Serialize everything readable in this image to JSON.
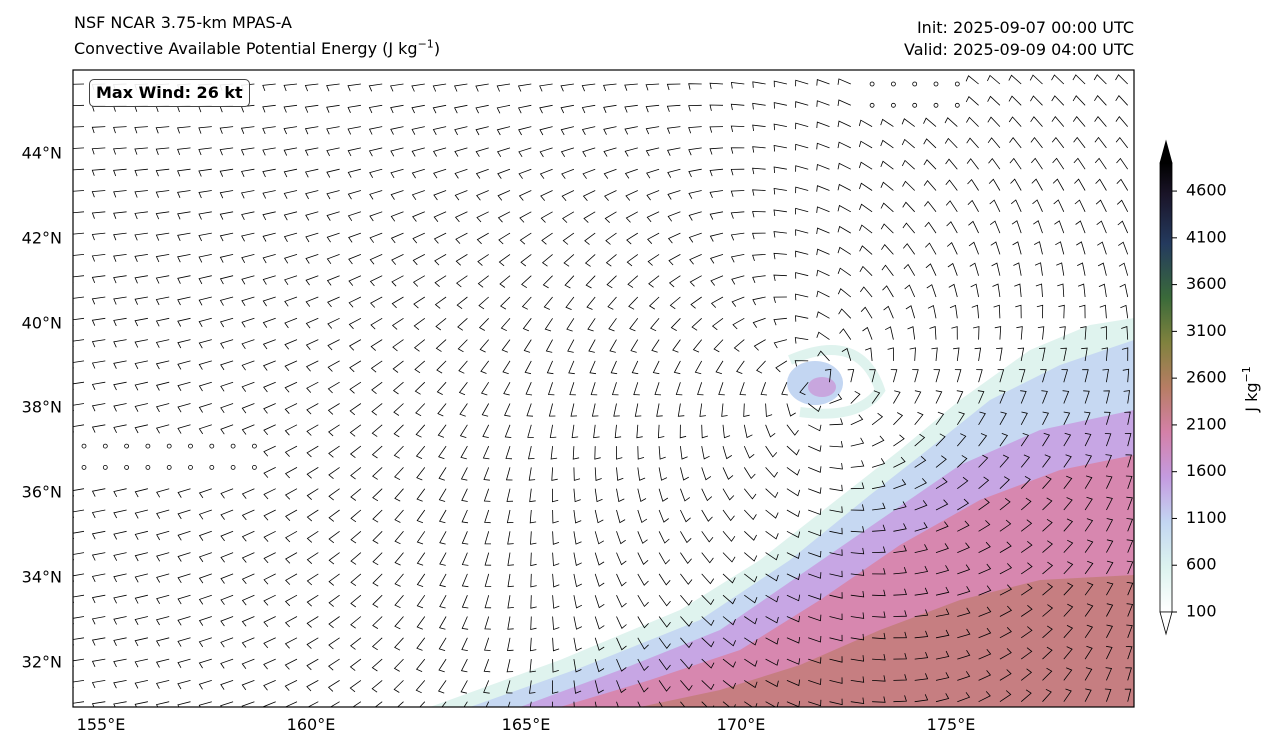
{
  "header": {
    "model": "NSF NCAR 3.75-km MPAS-A",
    "field_prefix": "Convective Available Potential Energy (J kg",
    "field_exp": "−1",
    "field_suffix": ")",
    "init": "Init: 2025-09-07 00:00 UTC",
    "valid": "Valid: 2025-09-09 04:00 UTC"
  },
  "badge": {
    "text": "Max Wind: 26 kt"
  },
  "map": {
    "lon_range": [
      154.8,
      179.4
    ],
    "lat_range": [
      31.0,
      46.0
    ],
    "lon_ticks": [
      155,
      160,
      165,
      170,
      175
    ],
    "lon_labels": [
      "155°E",
      "160°E",
      "165°E",
      "170°E",
      "175°E"
    ],
    "lat_ticks": [
      32,
      34,
      36,
      38,
      40,
      42,
      44
    ],
    "lat_labels": [
      "32°N",
      "34°N",
      "36°N",
      "38°N",
      "40°N",
      "42°N",
      "44°N"
    ],
    "cyclone_center": {
      "lon": 172.0,
      "lat": 38.8
    },
    "field": "CAPE",
    "wind_barbs": true
  },
  "colorbar": {
    "label_main": "J kg",
    "label_exp": "−1",
    "ticks": [
      100,
      600,
      1100,
      1600,
      2100,
      2600,
      3100,
      3600,
      4100,
      4600
    ],
    "tick_labels": [
      "100",
      "600",
      "1100",
      "1600",
      "2100",
      "2600",
      "3100",
      "3600",
      "4100",
      "4600"
    ],
    "range": [
      100,
      4900
    ],
    "extend": "both",
    "colors": [
      "#ffffff",
      "#dcf3ef",
      "#c3d6f2",
      "#c49be0",
      "#d480a8",
      "#b77d64",
      "#80823e",
      "#3a6a3a",
      "#243a5e",
      "#1a1428",
      "#000000"
    ]
  }
}
